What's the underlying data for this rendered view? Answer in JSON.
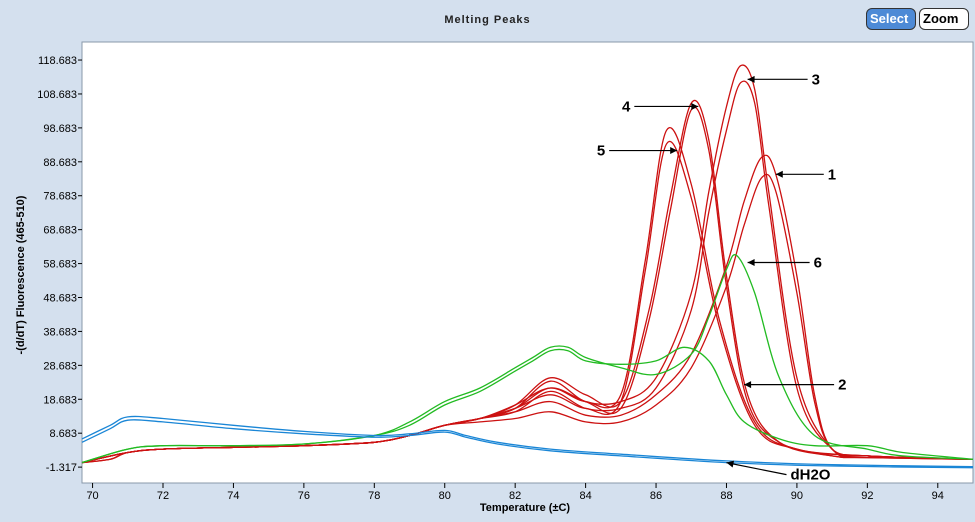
{
  "window": {
    "title": "Melting Peaks",
    "buttons": {
      "select": "Select",
      "zoom": "Zoom"
    }
  },
  "colors": {
    "red": "#cc1111",
    "green": "#22bb22",
    "blue": "#1a86d6",
    "select_button": "#4d8ad6"
  },
  "chart_data": {
    "type": "line",
    "title": "Melting Peaks",
    "xlabel": "Temperature (±C)",
    "ylabel": "-(d/dT) Fluorescence (465-510)",
    "xlim": [
      69.7,
      95
    ],
    "ylim": [
      -6,
      124
    ],
    "x_ticks": [
      70,
      72,
      74,
      76,
      78,
      80,
      82,
      84,
      86,
      88,
      90,
      92,
      94
    ],
    "y_ticks": [
      "-1.317",
      "8.683",
      "18.683",
      "28.683",
      "38.683",
      "48.683",
      "58.683",
      "68.683",
      "78.683",
      "88.683",
      "98.683",
      "108.683",
      "118.683"
    ],
    "grid": false,
    "series": [
      {
        "color": "red",
        "x": [
          69.7,
          70.5,
          71,
          72,
          74,
          76,
          78,
          79,
          80,
          81,
          82,
          83,
          84,
          85,
          86,
          87,
          88,
          88.5,
          89,
          89.4,
          90,
          90.5,
          91,
          92,
          93,
          95
        ],
        "y": [
          0,
          1,
          3,
          4,
          4.5,
          5,
          6,
          8,
          11,
          13,
          15,
          18,
          14,
          14,
          20,
          32,
          58,
          77,
          90,
          85,
          55,
          20,
          4,
          2,
          1.5,
          1
        ]
      },
      {
        "color": "red",
        "x": [
          69.7,
          70.5,
          71,
          72,
          74,
          76,
          78,
          79,
          80,
          81,
          82,
          83,
          84,
          85,
          86,
          87,
          88,
          88.5,
          89,
          89.4,
          90,
          90.5,
          91,
          92,
          93,
          95
        ],
        "y": [
          0,
          1,
          3,
          4,
          4.5,
          5,
          6,
          8,
          11,
          12,
          13,
          15,
          12,
          12,
          17,
          28,
          52,
          70,
          84,
          80,
          50,
          18,
          4,
          2,
          1.5,
          1
        ]
      },
      {
        "color": "red",
        "x": [
          69.7,
          71,
          72,
          74,
          76,
          78,
          79,
          80,
          81,
          82,
          83,
          84,
          85,
          86,
          87,
          87.5,
          88,
          88.4,
          88.8,
          89.2,
          90,
          91,
          92,
          95
        ],
        "y": [
          0,
          3,
          4,
          4.5,
          5,
          6,
          8,
          11,
          13,
          16,
          24,
          18,
          18,
          25,
          50,
          80,
          105,
          117,
          110,
          80,
          25,
          4,
          2,
          1
        ]
      },
      {
        "color": "red",
        "x": [
          69.7,
          71,
          72,
          74,
          76,
          78,
          79,
          80,
          81,
          82,
          83,
          84,
          85,
          86,
          87,
          87.5,
          88,
          88.4,
          88.8,
          89.2,
          90,
          91,
          92,
          95
        ],
        "y": [
          0,
          3,
          4,
          4.5,
          5,
          6,
          8,
          11,
          13,
          15,
          21,
          16,
          16,
          22,
          45,
          74,
          98,
          112,
          106,
          76,
          22,
          4,
          2,
          1
        ]
      },
      {
        "color": "red",
        "x": [
          69.7,
          71,
          72,
          74,
          76,
          78,
          79,
          80,
          81,
          82,
          83,
          84,
          85,
          85.8,
          86.4,
          87,
          87.5,
          88,
          88.6,
          89.5,
          91,
          92,
          95
        ],
        "y": [
          0,
          3,
          4,
          4.5,
          5,
          6,
          8,
          11,
          13,
          17,
          25,
          20,
          18,
          45,
          78,
          106,
          95,
          55,
          20,
          6,
          2,
          1.5,
          1
        ]
      },
      {
        "color": "red",
        "x": [
          69.7,
          71,
          72,
          74,
          76,
          78,
          79,
          80,
          81,
          82,
          83,
          84,
          85,
          85.8,
          86.4,
          87,
          87.5,
          88,
          88.6,
          89.5,
          91,
          92,
          95
        ],
        "y": [
          0,
          3,
          4,
          4.5,
          5,
          6,
          8,
          11,
          13,
          16,
          22,
          18,
          16,
          42,
          74,
          104,
          92,
          52,
          18,
          6,
          2,
          1.5,
          1
        ]
      },
      {
        "color": "red",
        "x": [
          69.7,
          71,
          72,
          74,
          76,
          78,
          79,
          80,
          81,
          82,
          83,
          84,
          85,
          85.7,
          86.3,
          87,
          87.8,
          88.8,
          90,
          92,
          95
        ],
        "y": [
          0,
          3,
          4,
          4.5,
          5,
          6,
          8,
          11,
          13,
          17,
          22,
          18,
          20,
          60,
          98,
          82,
          42,
          12,
          4,
          2,
          1
        ]
      },
      {
        "color": "red",
        "x": [
          69.7,
          71,
          72,
          74,
          76,
          78,
          79,
          80,
          81,
          82,
          83,
          84,
          85,
          85.7,
          86.3,
          87,
          87.8,
          88.8,
          90,
          92,
          95
        ],
        "y": [
          0,
          3,
          4,
          4.5,
          5,
          6,
          8,
          11,
          13,
          16,
          20,
          16,
          18,
          57,
          94,
          78,
          40,
          11,
          4,
          2,
          1
        ]
      },
      {
        "color": "green",
        "x": [
          69.7,
          71,
          72,
          74,
          76,
          78,
          79,
          80,
          81,
          82,
          82.5,
          83,
          83.5,
          84,
          85,
          86,
          87,
          87.5,
          88,
          88.3,
          88.8,
          89.5,
          90.5,
          92,
          93,
          95
        ],
        "y": [
          0,
          4,
          5,
          5,
          5.5,
          8,
          12,
          18,
          22,
          28,
          31,
          34,
          34,
          31,
          28,
          26,
          32,
          43,
          57,
          61,
          50,
          25,
          8,
          4,
          2,
          1
        ]
      },
      {
        "color": "green",
        "x": [
          69.7,
          71,
          72,
          74,
          76,
          78,
          79,
          80,
          81,
          82,
          82.5,
          83,
          83.5,
          84,
          85,
          86,
          86.8,
          87.5,
          88,
          88.5,
          89.5,
          90.5,
          92,
          93,
          95
        ],
        "y": [
          0,
          4,
          5,
          5,
          5.5,
          8,
          11,
          17,
          21,
          27,
          30,
          33,
          33,
          30,
          29,
          30,
          34,
          30,
          20,
          12,
          7,
          5,
          5,
          3,
          1
        ]
      },
      {
        "color": "blue",
        "x": [
          69.7,
          70.5,
          71,
          72,
          74,
          76,
          78,
          79,
          80,
          80.6,
          81.5,
          83,
          85,
          88,
          91,
          95
        ],
        "y": [
          6,
          10,
          12.5,
          12,
          10,
          8.5,
          7.5,
          8,
          9,
          7.5,
          5.5,
          3.5,
          2,
          0,
          -1,
          -1.5
        ]
      },
      {
        "color": "blue",
        "x": [
          69.7,
          70.5,
          71,
          72,
          74,
          76,
          78,
          79,
          80,
          80.6,
          81.5,
          83,
          85,
          88,
          91,
          95
        ],
        "y": [
          7,
          11,
          13.5,
          13,
          11,
          9.2,
          8,
          8.5,
          9.5,
          8,
          6,
          4,
          2.5,
          0.5,
          -0.6,
          -1.2
        ]
      }
    ],
    "annotations": [
      {
        "label": "1",
        "x": 89.4,
        "y": 85
      },
      {
        "label": "2",
        "x": 88.5,
        "y": 23
      },
      {
        "label": "3",
        "x": 88.6,
        "y": 113
      },
      {
        "label": "4",
        "x": 87.2,
        "y": 105
      },
      {
        "label": "5",
        "x": 86.6,
        "y": 92
      },
      {
        "label": "6",
        "x": 88.6,
        "y": 59
      },
      {
        "label": "dH2O",
        "x": 88.0,
        "y": 0
      }
    ]
  }
}
